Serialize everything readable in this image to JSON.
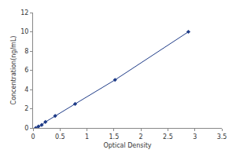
{
  "chart_data": {
    "type": "line",
    "x_label": "Optical Density",
    "y_label": "Concentration(ng/mL)",
    "x": [
      0.05,
      0.1,
      0.16,
      0.23,
      0.41,
      0.78,
      1.52,
      2.88
    ],
    "values": [
      0,
      0.156,
      0.313,
      0.625,
      1.25,
      2.5,
      5,
      10
    ],
    "color": "#1f3c88",
    "marker": "diamond",
    "line_style": "solid",
    "xlim": [
      0,
      3.5
    ],
    "xticks": [
      0,
      0.5,
      1,
      1.5,
      2,
      2.5,
      3,
      3.5
    ],
    "ylim": [
      0,
      12
    ],
    "yticks": [
      0,
      2,
      4,
      6,
      8,
      10,
      12
    ],
    "grid": false
  }
}
